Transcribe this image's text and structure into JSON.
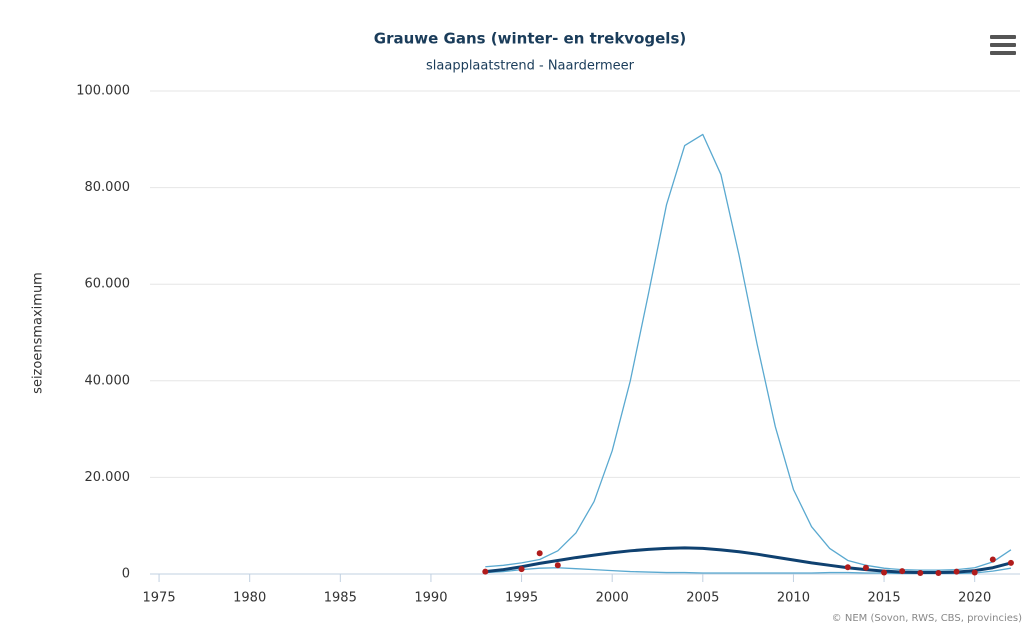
{
  "chart_data": {
    "type": "line",
    "title": "Grauwe Gans (winter- en trekvogels)",
    "subtitle": "slaapplaatstrend - Naardermeer",
    "y_label": "seizoensmaximum",
    "credit": "© NEM (Sovon, RWS, CBS, provincies)",
    "x": [
      1993,
      1994,
      1995,
      1996,
      1997,
      1998,
      1999,
      2000,
      2001,
      2002,
      2003,
      2004,
      2005,
      2006,
      2007,
      2008,
      2009,
      2010,
      2011,
      2012,
      2013,
      2014,
      2015,
      2016,
      2017,
      2018,
      2019,
      2020,
      2021,
      2022
    ],
    "series": [
      {
        "color": "#5aa9d0",
        "width": 1.3,
        "values": [
          1500,
          1800,
          2300,
          3000,
          4800,
          8500,
          15000,
          25500,
          40000,
          58000,
          76500,
          88700,
          91000,
          82700,
          66000,
          47500,
          30500,
          17500,
          9800,
          5300,
          2800,
          1800,
          1200,
          900,
          800,
          800,
          900,
          1300,
          2500,
          5000
        ]
      },
      {
        "color": "#5aa9d0",
        "width": 1.3,
        "values": [
          300,
          500,
          900,
          1200,
          1300,
          1100,
          900,
          700,
          500,
          400,
          300,
          300,
          200,
          200,
          200,
          200,
          200,
          200,
          200,
          300,
          300,
          200,
          200,
          100,
          100,
          100,
          100,
          200,
          600,
          1200
        ]
      },
      {
        "color": "#0f4170",
        "width": 3,
        "values": [
          500,
          900,
          1500,
          2200,
          2800,
          3400,
          3900,
          4400,
          4800,
          5100,
          5300,
          5400,
          5300,
          5000,
          4600,
          4100,
          3500,
          2900,
          2300,
          1800,
          1300,
          900,
          600,
          400,
          300,
          300,
          400,
          700,
          1300,
          2300
        ]
      }
    ],
    "points": {
      "color": "#b01c1c",
      "x": [
        1993,
        1995,
        1996,
        1997,
        2013,
        2014,
        2015,
        2016,
        2017,
        2018,
        2019,
        2020,
        2021,
        2022
      ],
      "values": [
        500,
        1000,
        4300,
        1800,
        1400,
        1300,
        300,
        600,
        200,
        200,
        500,
        300,
        3000,
        2300
      ]
    },
    "xlim": [
      1974.5,
      2022.5
    ],
    "xticks": [
      1975,
      1980,
      1985,
      1990,
      1995,
      2000,
      2005,
      2010,
      2015,
      2020
    ],
    "ylim": [
      0,
      100000
    ],
    "yticks": [
      0,
      {
        "value": 20000,
        "label": "20.000"
      },
      {
        "value": 40000,
        "label": "40.000"
      },
      {
        "value": 60000,
        "label": "60.000"
      },
      {
        "value": 80000,
        "label": "80.000"
      },
      {
        "value": 100000,
        "label": "100.000"
      }
    ],
    "grid": true
  }
}
